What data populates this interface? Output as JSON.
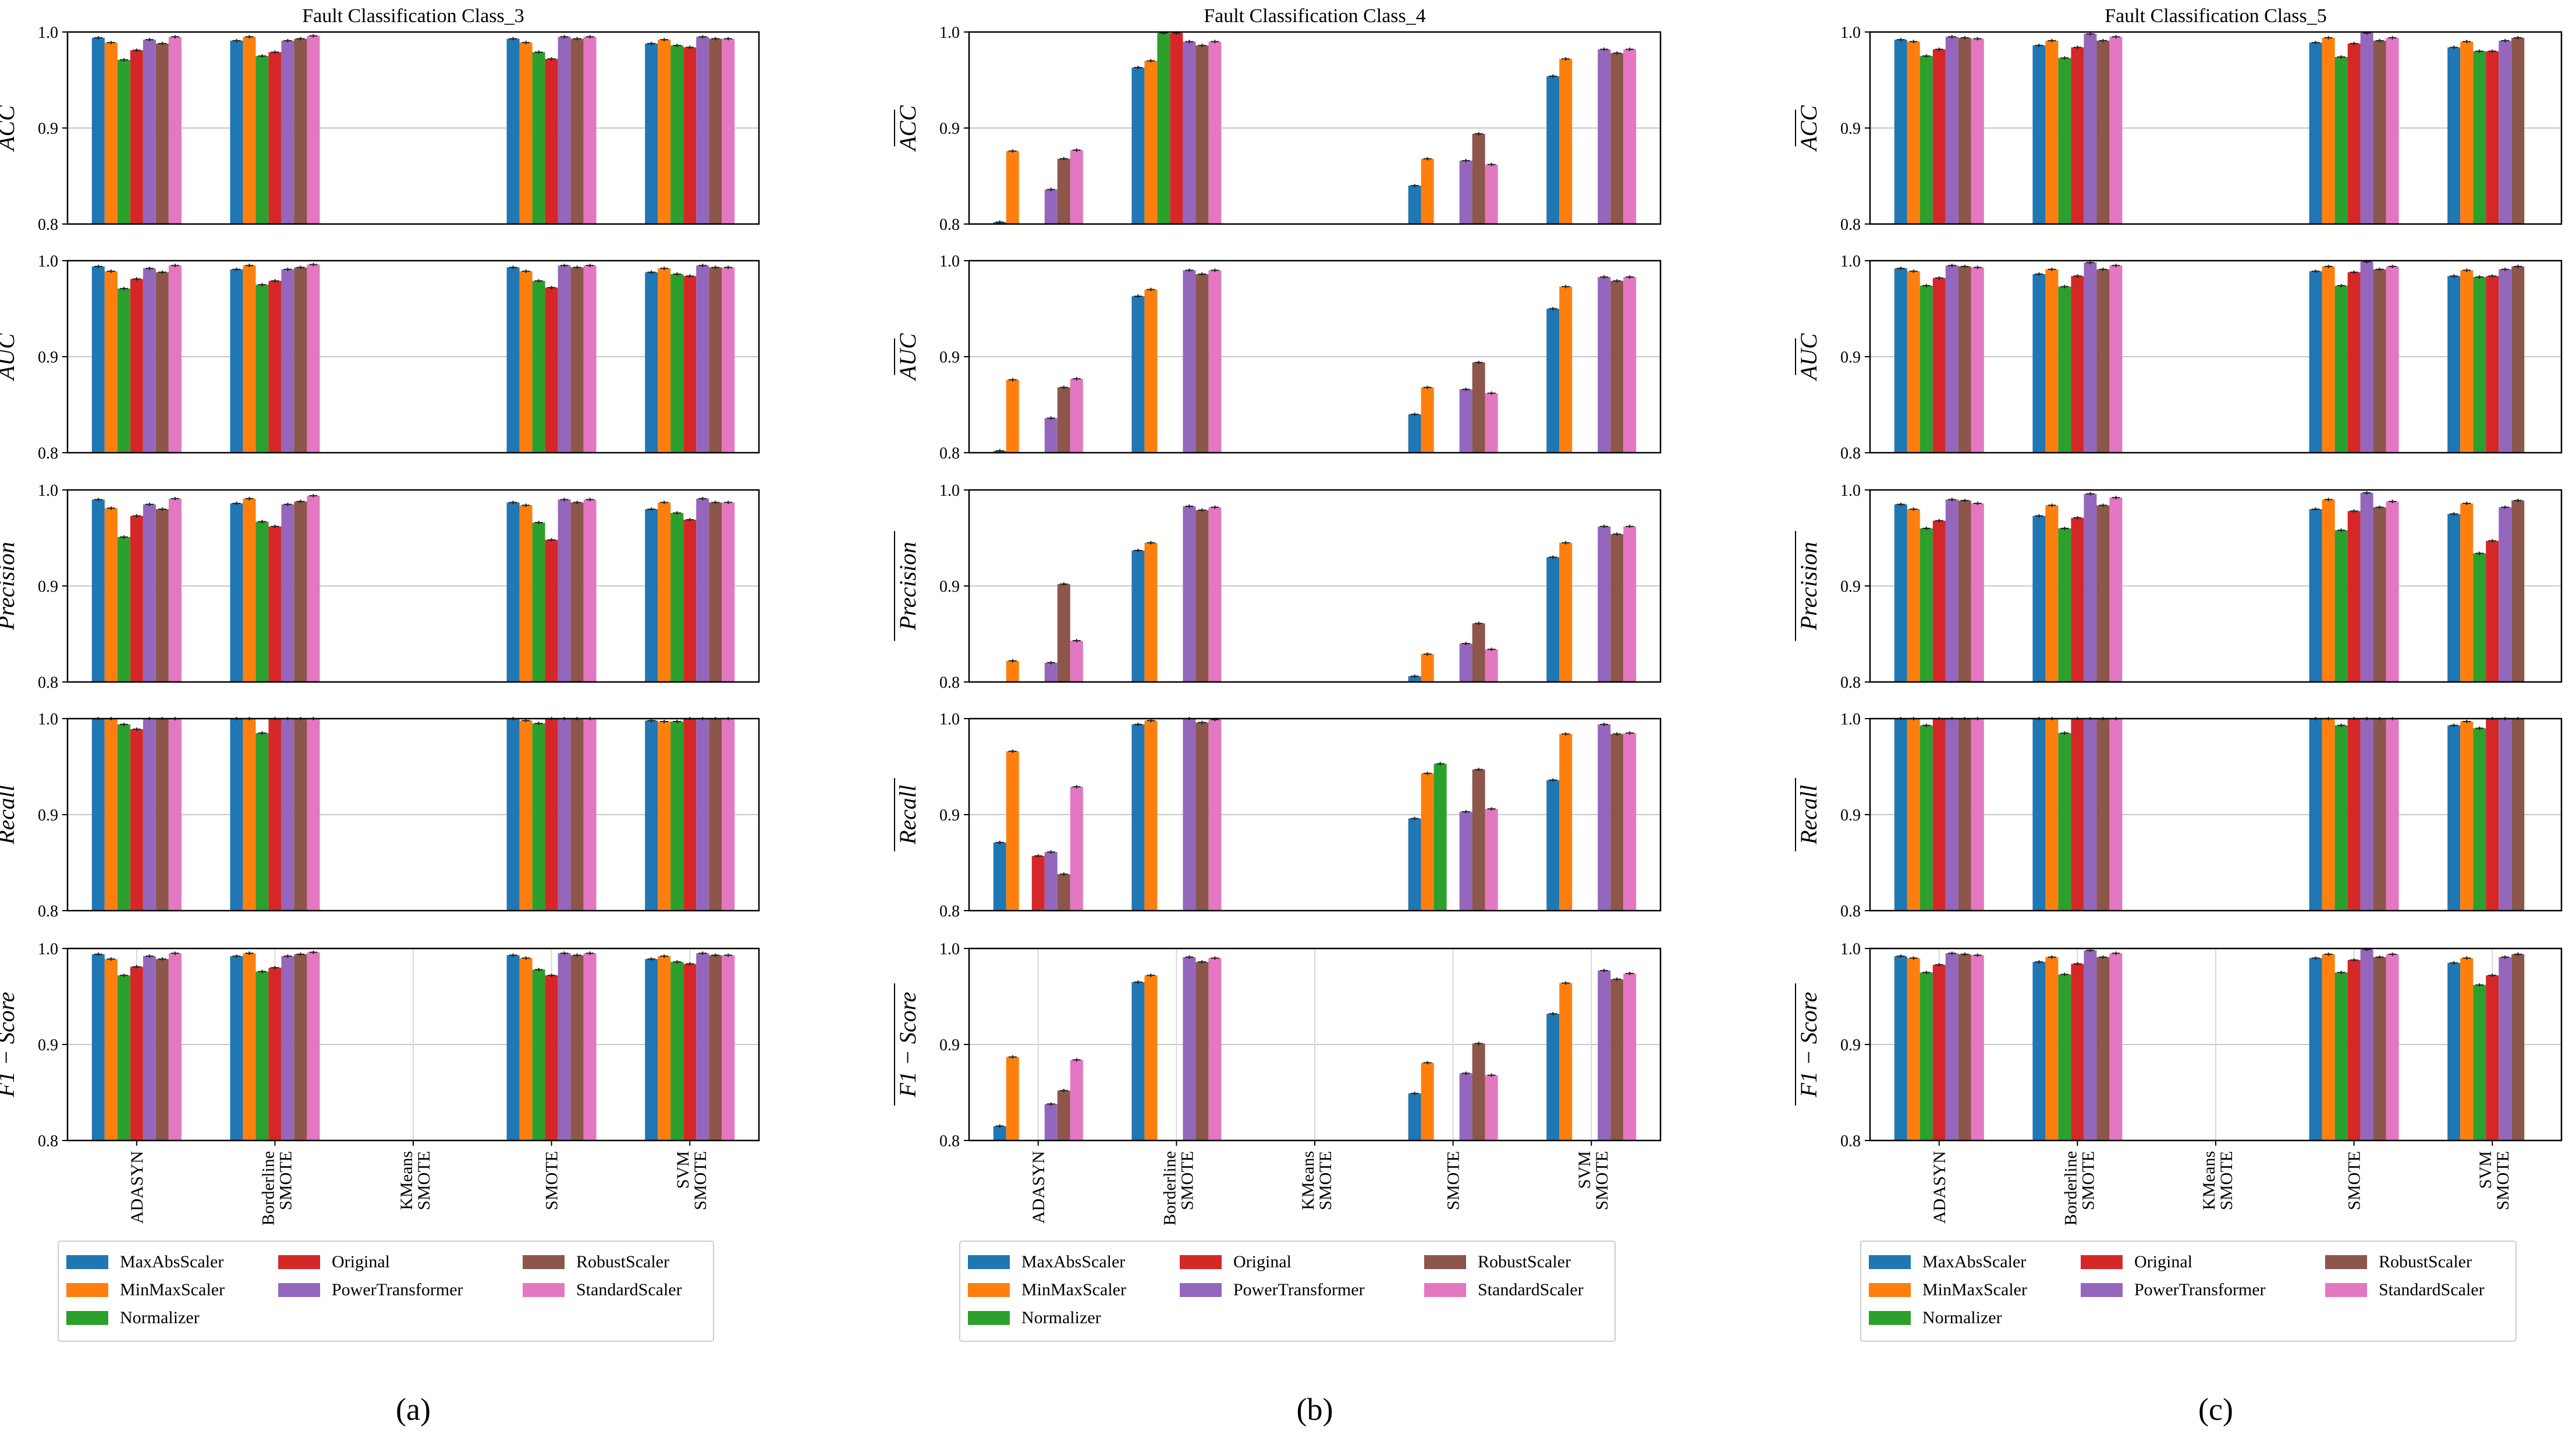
{
  "figure": {
    "scalers": [
      {
        "name": "MaxAbsScaler",
        "color": "#1f77b4"
      },
      {
        "name": "MinMaxScaler",
        "color": "#ff7f0e"
      },
      {
        "name": "Normalizer",
        "color": "#2ca02c"
      },
      {
        "name": "Original",
        "color": "#d62728"
      },
      {
        "name": "PowerTransformer",
        "color": "#9467bd"
      },
      {
        "name": "RobustScaler",
        "color": "#8c564b"
      },
      {
        "name": "StandardScaler",
        "color": "#e377c2"
      }
    ],
    "legend_columns": [
      [
        "MaxAbsScaler",
        "MinMaxScaler",
        "Normalizer"
      ],
      [
        "Original",
        "PowerTransformer"
      ],
      [
        "RobustScaler",
        "StandardScaler"
      ]
    ],
    "methods": [
      "ADASYN",
      "Borderline SMOTE",
      "KMeans SMOTE",
      "SMOTE",
      "SVM SMOTE"
    ],
    "metrics": [
      "ACC",
      "AUC",
      "Precision",
      "Recall",
      "F1 − Score"
    ],
    "y_ticks": [
      "0.8",
      "0.9",
      "1.0"
    ]
  },
  "chart_data": [
    {
      "type": "bar",
      "title": "Fault Classification Class_3",
      "caption": "(a)",
      "categories": [
        "ADASYN",
        "Borderline SMOTE",
        "KMeans SMOTE",
        "SMOTE",
        "SVM SMOTE"
      ],
      "ylim": [
        0.8,
        1.0
      ],
      "legend_position": "below",
      "panels": [
        {
          "metric": "ACC",
          "values": [
            [
              0.994,
              0.989,
              0.971,
              0.981,
              0.992,
              0.988,
              0.995
            ],
            [
              0.991,
              0.995,
              0.975,
              0.979,
              0.991,
              0.993,
              0.996
            ],
            [
              null,
              null,
              null,
              null,
              null,
              null,
              null
            ],
            [
              0.993,
              0.989,
              0.979,
              0.972,
              0.995,
              0.993,
              0.995
            ],
            [
              0.988,
              0.992,
              0.986,
              0.984,
              0.995,
              0.993,
              0.993
            ]
          ]
        },
        {
          "metric": "AUC",
          "values": [
            [
              0.994,
              0.989,
              0.971,
              0.981,
              0.992,
              0.988,
              0.995
            ],
            [
              0.991,
              0.995,
              0.975,
              0.979,
              0.991,
              0.993,
              0.996
            ],
            [
              null,
              null,
              null,
              null,
              null,
              null,
              null
            ],
            [
              0.993,
              0.989,
              0.979,
              0.972,
              0.995,
              0.993,
              0.995
            ],
            [
              0.988,
              0.992,
              0.986,
              0.984,
              0.995,
              0.993,
              0.993
            ]
          ]
        },
        {
          "metric": "Precision",
          "values": [
            [
              0.99,
              0.981,
              0.951,
              0.973,
              0.985,
              0.98,
              0.991
            ],
            [
              0.986,
              0.991,
              0.967,
              0.962,
              0.985,
              0.988,
              0.994
            ],
            [
              null,
              null,
              null,
              null,
              null,
              null,
              null
            ],
            [
              0.987,
              0.984,
              0.966,
              0.948,
              0.99,
              0.987,
              0.99
            ],
            [
              0.98,
              0.987,
              0.976,
              0.969,
              0.991,
              0.987,
              0.987
            ]
          ]
        },
        {
          "metric": "Recall",
          "values": [
            [
              1.0,
              1.0,
              0.994,
              0.989,
              1.0,
              1.0,
              1.0
            ],
            [
              1.0,
              1.0,
              0.985,
              1.0,
              1.0,
              1.0,
              1.0
            ],
            [
              null,
              null,
              null,
              null,
              null,
              null,
              null
            ],
            [
              1.0,
              0.998,
              0.995,
              1.0,
              1.0,
              1.0,
              1.0
            ],
            [
              0.998,
              0.997,
              0.997,
              1.0,
              1.0,
              1.0,
              1.0
            ]
          ]
        },
        {
          "metric": "F1 − Score",
          "values": [
            [
              0.994,
              0.989,
              0.972,
              0.981,
              0.992,
              0.989,
              0.995
            ],
            [
              0.992,
              0.995,
              0.976,
              0.98,
              0.992,
              0.994,
              0.996
            ],
            [
              null,
              null,
              null,
              null,
              null,
              null,
              null
            ],
            [
              0.993,
              0.99,
              0.978,
              0.972,
              0.995,
              0.993,
              0.995
            ],
            [
              0.989,
              0.992,
              0.986,
              0.984,
              0.995,
              0.993,
              0.993
            ]
          ]
        }
      ]
    },
    {
      "type": "bar",
      "title": "Fault Classification Class_4",
      "caption": "(b)",
      "categories": [
        "ADASYN",
        "Borderline SMOTE",
        "KMeans SMOTE",
        "SMOTE",
        "SVM SMOTE"
      ],
      "ylim": [
        0.8,
        1.0
      ],
      "legend_position": "below",
      "panels": [
        {
          "metric": "ACC",
          "values": [
            [
              0.802,
              0.876,
              null,
              null,
              0.836,
              0.868,
              0.877
            ],
            [
              0.963,
              0.97,
              0.999,
              0.999,
              0.99,
              0.986,
              0.99
            ],
            [
              null,
              null,
              null,
              null,
              null,
              null,
              null
            ],
            [
              0.84,
              0.868,
              null,
              null,
              0.866,
              0.894,
              0.862
            ],
            [
              0.954,
              0.972,
              null,
              null,
              0.982,
              0.978,
              0.982
            ]
          ]
        },
        {
          "metric": "AUC",
          "values": [
            [
              0.802,
              0.876,
              null,
              null,
              0.836,
              0.868,
              0.877
            ],
            [
              0.963,
              0.97,
              null,
              null,
              0.99,
              0.986,
              0.99
            ],
            [
              null,
              null,
              null,
              null,
              null,
              null,
              null
            ],
            [
              0.84,
              0.868,
              null,
              null,
              0.866,
              0.894,
              0.862
            ],
            [
              0.95,
              0.973,
              null,
              null,
              0.983,
              0.979,
              0.983
            ]
          ]
        },
        {
          "metric": "Precision",
          "values": [
            [
              null,
              0.822,
              null,
              null,
              0.82,
              0.902,
              0.843
            ],
            [
              0.937,
              0.945,
              null,
              null,
              0.983,
              0.979,
              0.982
            ],
            [
              null,
              null,
              null,
              null,
              null,
              null,
              null
            ],
            [
              0.806,
              0.829,
              null,
              null,
              0.84,
              0.861,
              0.834
            ],
            [
              0.93,
              0.945,
              null,
              null,
              0.962,
              0.954,
              0.962
            ]
          ]
        },
        {
          "metric": "Recall",
          "values": [
            [
              0.871,
              0.966,
              null,
              0.857,
              0.861,
              0.838,
              0.929
            ],
            [
              0.994,
              0.998,
              null,
              null,
              1.0,
              0.996,
              0.999
            ],
            [
              null,
              null,
              null,
              null,
              null,
              null,
              null
            ],
            [
              0.896,
              0.943,
              0.953,
              null,
              0.903,
              0.947,
              0.906
            ],
            [
              0.936,
              0.984,
              null,
              null,
              0.994,
              0.984,
              0.985
            ]
          ]
        },
        {
          "metric": "F1 − Score",
          "values": [
            [
              0.815,
              0.887,
              null,
              null,
              0.838,
              0.852,
              0.884
            ],
            [
              0.965,
              0.972,
              null,
              null,
              0.991,
              0.986,
              0.99
            ],
            [
              null,
              null,
              null,
              null,
              null,
              null,
              null
            ],
            [
              0.849,
              0.881,
              null,
              null,
              0.87,
              0.901,
              0.868
            ],
            [
              0.932,
              0.964,
              null,
              null,
              0.977,
              0.968,
              0.974
            ]
          ]
        }
      ]
    },
    {
      "type": "bar",
      "title": "Fault Classification Class_5",
      "caption": "(c)",
      "categories": [
        "ADASYN",
        "Borderline SMOTE",
        "KMeans SMOTE",
        "SMOTE",
        "SVM SMOTE"
      ],
      "ylim": [
        0.8,
        1.0
      ],
      "legend_position": "below",
      "panels": [
        {
          "metric": "ACC",
          "values": [
            [
              0.992,
              0.99,
              0.975,
              0.982,
              0.995,
              0.994,
              0.993
            ],
            [
              0.986,
              0.991,
              0.973,
              0.984,
              0.998,
              0.991,
              0.995
            ],
            [
              null,
              null,
              null,
              null,
              null,
              null,
              null
            ],
            [
              0.989,
              0.994,
              0.974,
              0.988,
              0.999,
              0.991,
              0.994
            ],
            [
              0.984,
              0.99,
              0.98,
              0.98,
              0.991,
              0.994,
              null
            ]
          ]
        },
        {
          "metric": "AUC",
          "values": [
            [
              0.992,
              0.989,
              0.974,
              0.982,
              0.995,
              0.994,
              0.993
            ],
            [
              0.986,
              0.991,
              0.973,
              0.984,
              0.998,
              0.991,
              0.995
            ],
            [
              null,
              null,
              null,
              null,
              null,
              null,
              null
            ],
            [
              0.989,
              0.994,
              0.974,
              0.988,
              0.999,
              0.991,
              0.994
            ],
            [
              0.984,
              0.99,
              0.983,
              0.984,
              0.991,
              0.994,
              null
            ]
          ]
        },
        {
          "metric": "Precision",
          "values": [
            [
              0.985,
              0.98,
              0.96,
              0.968,
              0.99,
              0.989,
              0.986
            ],
            [
              0.973,
              0.984,
              0.96,
              0.971,
              0.996,
              0.984,
              0.992
            ],
            [
              null,
              null,
              null,
              null,
              null,
              null,
              null
            ],
            [
              0.98,
              0.99,
              0.958,
              0.978,
              0.997,
              0.982,
              0.988
            ],
            [
              0.975,
              0.986,
              0.934,
              0.947,
              0.982,
              0.989,
              null
            ]
          ]
        },
        {
          "metric": "Recall",
          "values": [
            [
              1.0,
              1.0,
              0.993,
              1.0,
              1.0,
              1.0,
              1.0
            ],
            [
              1.0,
              1.0,
              0.985,
              1.0,
              1.0,
              1.0,
              1.0
            ],
            [
              null,
              null,
              null,
              null,
              null,
              null,
              null
            ],
            [
              1.0,
              1.0,
              0.993,
              1.0,
              1.0,
              1.0,
              1.0
            ],
            [
              0.993,
              0.997,
              0.99,
              1.0,
              1.0,
              1.0,
              null
            ]
          ]
        },
        {
          "metric": "F1 − Score",
          "values": [
            [
              0.992,
              0.99,
              0.975,
              0.983,
              0.995,
              0.994,
              0.993
            ],
            [
              0.986,
              0.991,
              0.973,
              0.984,
              0.998,
              0.991,
              0.995
            ],
            [
              null,
              null,
              null,
              null,
              null,
              null,
              null
            ],
            [
              0.99,
              0.994,
              0.975,
              0.988,
              0.999,
              0.991,
              0.994
            ],
            [
              0.985,
              0.99,
              0.962,
              0.972,
              0.991,
              0.994,
              null
            ]
          ]
        }
      ]
    }
  ]
}
